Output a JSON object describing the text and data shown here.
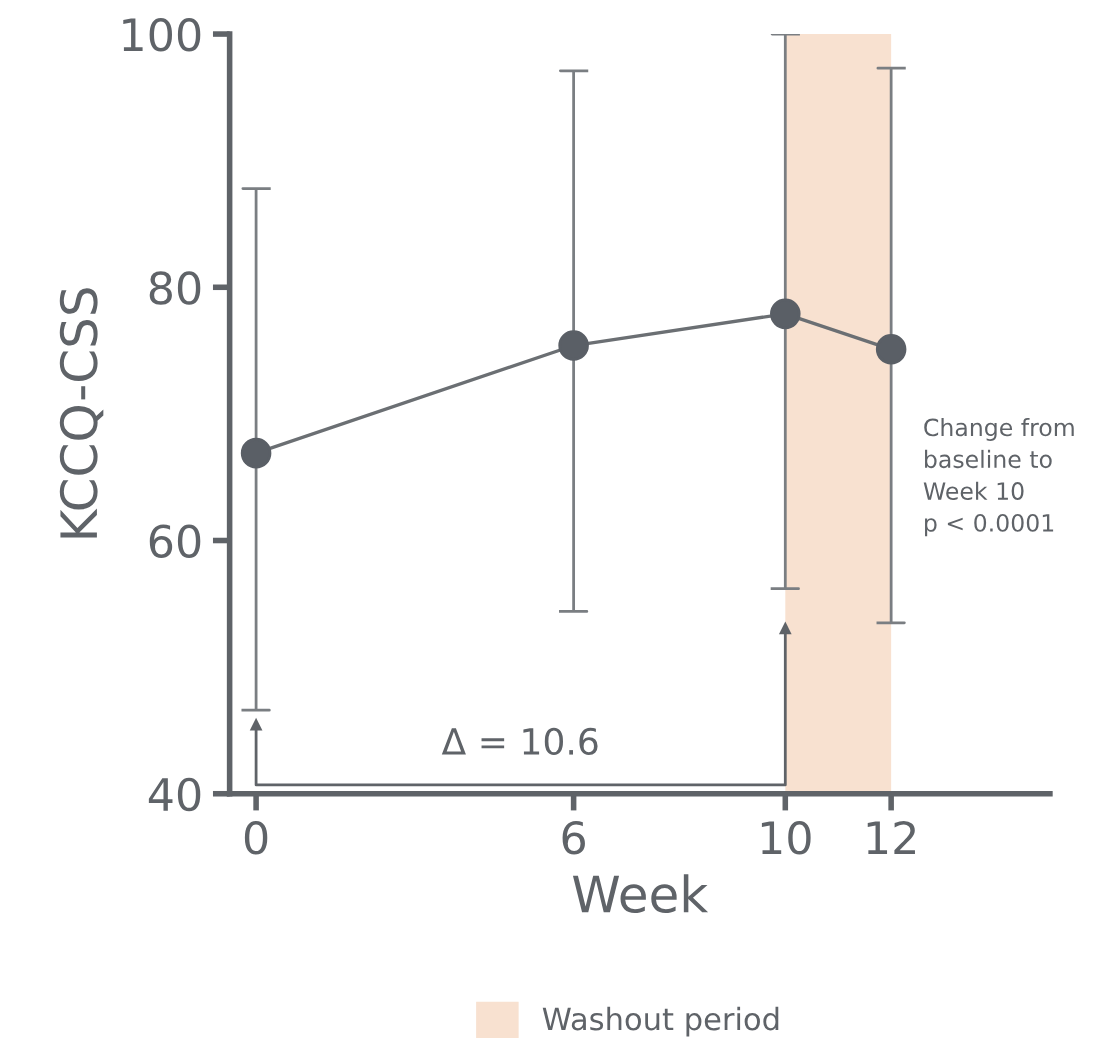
{
  "chart_data": {
    "type": "line",
    "xlabel": "Week",
    "ylabel": "KCCQ-CSS",
    "x": [
      0,
      6,
      10,
      12
    ],
    "series": [
      {
        "color": "#5a5f66",
        "values": [
          66.9,
          75.4,
          77.9,
          75.1
        ],
        "errors": [
          [
            46.6,
            87.8
          ],
          [
            54.4,
            97.1
          ],
          [
            56.2,
            100
          ],
          [
            53.5,
            97.3
          ]
        ]
      }
    ],
    "marker": "circle",
    "line_style": "solid",
    "xlim": [
      -0.5,
      15
    ],
    "xticks": [
      0,
      6,
      10,
      12
    ],
    "ylim": [
      40,
      100
    ],
    "yticks": [
      40,
      60,
      80,
      100
    ],
    "bands": [
      {
        "axis": "x",
        "from": 10,
        "to": 12,
        "label": "Washout period",
        "color": "#f8e1d0"
      }
    ],
    "annotations": [
      "Δ = 10.6",
      "Change from\nbaseline to\nWeek 10\np < 0.0001"
    ],
    "legend": "bottom",
    "grid": false
  }
}
